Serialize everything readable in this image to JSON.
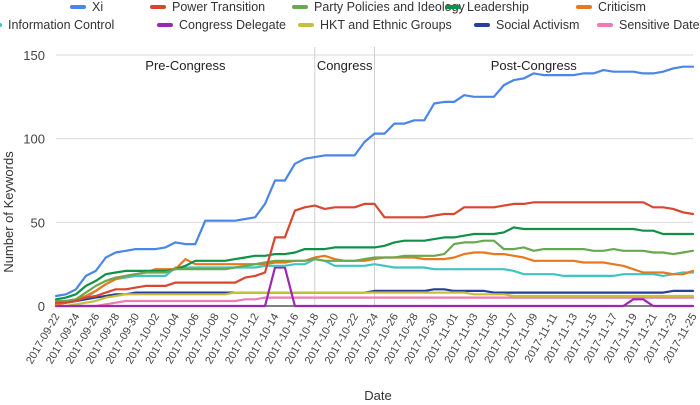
{
  "chart_data": {
    "type": "line",
    "title": "",
    "xlabel": "Date",
    "ylabel": "Number of Keywords",
    "ylim": [
      0,
      150
    ],
    "yticks": [
      0,
      50,
      100,
      150
    ],
    "grid": true,
    "legend_position": "top",
    "phases": [
      {
        "label": "Pre-Congress",
        "start": "2017-09-22",
        "end": "2017-10-18"
      },
      {
        "label": "Congress",
        "start": "2017-10-18",
        "end": "2017-10-24"
      },
      {
        "label": "Post-Congress",
        "start": "2017-10-24",
        "end": "2017-11-25"
      }
    ],
    "x_labels": [
      "2017-09-22",
      "2017-09-24",
      "2017-09-26",
      "2017-09-28",
      "2017-09-30",
      "2017-10-02",
      "2017-10-04",
      "2017-10-06",
      "2017-10-08",
      "2017-10-10",
      "2017-10-12",
      "2017-10-14",
      "2017-10-16",
      "2017-10-18",
      "2017-10-20",
      "2017-10-22",
      "2017-10-24",
      "2017-10-26",
      "2017-10-28",
      "2017-10-30",
      "2017-11-01",
      "2017-11-03",
      "2017-11-05",
      "2017-11-07",
      "2017-11-09",
      "2017-11-11",
      "2017-11-13",
      "2017-11-15",
      "2017-11-17",
      "2017-11-19",
      "2017-11-21",
      "2017-11-23",
      "2017-11-25"
    ],
    "x": [
      "2017-09-22",
      "2017-09-23",
      "2017-09-24",
      "2017-09-25",
      "2017-09-26",
      "2017-09-27",
      "2017-09-28",
      "2017-09-29",
      "2017-09-30",
      "2017-10-01",
      "2017-10-02",
      "2017-10-03",
      "2017-10-04",
      "2017-10-05",
      "2017-10-06",
      "2017-10-07",
      "2017-10-08",
      "2017-10-09",
      "2017-10-10",
      "2017-10-11",
      "2017-10-12",
      "2017-10-13",
      "2017-10-14",
      "2017-10-15",
      "2017-10-16",
      "2017-10-17",
      "2017-10-18",
      "2017-10-19",
      "2017-10-20",
      "2017-10-21",
      "2017-10-22",
      "2017-10-23",
      "2017-10-24",
      "2017-10-25",
      "2017-10-26",
      "2017-10-27",
      "2017-10-28",
      "2017-10-29",
      "2017-10-30",
      "2017-10-31",
      "2017-11-01",
      "2017-11-02",
      "2017-11-03",
      "2017-11-04",
      "2017-11-05",
      "2017-11-06",
      "2017-11-07",
      "2017-11-08",
      "2017-11-09",
      "2017-11-10",
      "2017-11-11",
      "2017-11-12",
      "2017-11-13",
      "2017-11-14",
      "2017-11-15",
      "2017-11-16",
      "2017-11-17",
      "2017-11-18",
      "2017-11-19",
      "2017-11-20",
      "2017-11-21",
      "2017-11-22",
      "2017-11-23",
      "2017-11-24",
      "2017-11-25"
    ],
    "series": [
      {
        "name": "Xi",
        "color": "#4a86e8",
        "values": [
          6,
          7,
          10,
          18,
          21,
          29,
          32,
          33,
          34,
          34,
          34,
          35,
          38,
          37,
          37,
          51,
          51,
          51,
          51,
          52,
          53,
          61,
          75,
          75,
          85,
          88,
          89,
          90,
          90,
          90,
          90,
          98,
          103,
          103,
          109,
          109,
          111,
          111,
          121,
          122,
          122,
          126,
          125,
          125,
          125,
          132,
          135,
          136,
          139,
          138,
          138,
          138,
          138,
          139,
          139,
          141,
          140,
          140,
          140,
          139,
          139,
          140,
          142,
          143,
          143
        ]
      },
      {
        "name": "Power Transition",
        "color": "#d9462f",
        "values": [
          2,
          2,
          3,
          5,
          6,
          8,
          10,
          10,
          11,
          12,
          12,
          12,
          14,
          14,
          14,
          14,
          14,
          14,
          14,
          17,
          18,
          20,
          41,
          41,
          57,
          59,
          60,
          58,
          59,
          59,
          59,
          61,
          61,
          53,
          53,
          53,
          53,
          53,
          54,
          55,
          55,
          59,
          59,
          59,
          59,
          60,
          61,
          61,
          62,
          62,
          62,
          62,
          62,
          62,
          62,
          62,
          62,
          62,
          62,
          62,
          59,
          59,
          58,
          56,
          55
        ]
      },
      {
        "name": "Party Policies and Ideology",
        "color": "#6aa84f",
        "values": [
          3,
          3,
          4,
          8,
          12,
          15,
          17,
          18,
          19,
          20,
          20,
          20,
          22,
          22,
          22,
          22,
          22,
          22,
          23,
          24,
          25,
          26,
          27,
          27,
          27,
          27,
          28,
          27,
          27,
          27,
          27,
          28,
          29,
          29,
          29,
          30,
          30,
          30,
          30,
          31,
          37,
          38,
          38,
          39,
          39,
          34,
          34,
          35,
          33,
          34,
          34,
          34,
          34,
          34,
          33,
          33,
          34,
          33,
          33,
          33,
          32,
          32,
          31,
          32,
          33
        ]
      },
      {
        "name": "Leadership",
        "color": "#109148",
        "values": [
          4,
          5,
          7,
          12,
          15,
          19,
          20,
          21,
          21,
          21,
          21,
          21,
          22,
          24,
          27,
          27,
          27,
          27,
          28,
          29,
          30,
          30,
          31,
          31,
          32,
          34,
          34,
          34,
          35,
          35,
          35,
          35,
          35,
          36,
          38,
          39,
          39,
          39,
          40,
          41,
          41,
          42,
          43,
          43,
          43,
          44,
          47,
          46,
          46,
          46,
          46,
          46,
          46,
          46,
          46,
          46,
          46,
          46,
          46,
          45,
          45,
          43,
          43,
          43,
          43
        ]
      },
      {
        "name": "Criticism",
        "color": "#e8781f",
        "values": [
          1,
          2,
          4,
          6,
          9,
          13,
          16,
          18,
          19,
          20,
          22,
          22,
          22,
          28,
          25,
          25,
          25,
          25,
          25,
          25,
          25,
          25,
          26,
          26,
          27,
          27,
          29,
          30,
          28,
          27,
          27,
          27,
          28,
          29,
          29,
          29,
          29,
          28,
          28,
          28,
          29,
          31,
          32,
          32,
          31,
          31,
          30,
          29,
          27,
          27,
          27,
          27,
          27,
          26,
          26,
          26,
          25,
          24,
          22,
          20,
          20,
          20,
          19,
          19,
          21
        ]
      },
      {
        "name": "Information Control",
        "color": "#40c4c2",
        "values": [
          2,
          3,
          4,
          5,
          9,
          13,
          16,
          17,
          18,
          18,
          18,
          18,
          23,
          23,
          23,
          23,
          23,
          23,
          23,
          23,
          23,
          24,
          24,
          24,
          25,
          25,
          28,
          27,
          24,
          24,
          24,
          24,
          25,
          24,
          23,
          23,
          23,
          23,
          22,
          22,
          22,
          22,
          22,
          22,
          22,
          22,
          21,
          19,
          19,
          19,
          19,
          18,
          18,
          18,
          18,
          18,
          18,
          19,
          19,
          19,
          19,
          18,
          19,
          20,
          20
        ]
      },
      {
        "name": "Congress Delegate",
        "color": "#9c27b0",
        "values": [
          0,
          0,
          0,
          0,
          0,
          0,
          0,
          0,
          0,
          0,
          0,
          0,
          0,
          0,
          0,
          0,
          0,
          0,
          0,
          0,
          0,
          0,
          23,
          23,
          0,
          0,
          0,
          0,
          0,
          0,
          0,
          0,
          0,
          0,
          0,
          0,
          0,
          0,
          0,
          0,
          0,
          0,
          0,
          0,
          0,
          0,
          0,
          0,
          0,
          0,
          0,
          0,
          0,
          0,
          0,
          0,
          0,
          0,
          4,
          4,
          0,
          0,
          0,
          0,
          0
        ]
      },
      {
        "name": "HKT and Ethnic Groups",
        "color": "#c5c13b",
        "values": [
          0,
          0,
          1,
          2,
          3,
          5,
          6,
          7,
          7,
          7,
          7,
          7,
          7,
          7,
          7,
          7,
          7,
          7,
          8,
          8,
          8,
          8,
          8,
          8,
          8,
          8,
          8,
          8,
          8,
          8,
          8,
          8,
          8,
          8,
          8,
          8,
          8,
          8,
          8,
          8,
          8,
          8,
          7,
          7,
          7,
          7,
          6,
          6,
          6,
          6,
          6,
          6,
          6,
          6,
          6,
          6,
          6,
          6,
          6,
          6,
          6,
          6,
          6,
          6,
          6
        ]
      },
      {
        "name": "Social Activism",
        "color": "#263f9a",
        "values": [
          1,
          2,
          3,
          4,
          5,
          6,
          7,
          7,
          8,
          8,
          8,
          8,
          8,
          8,
          8,
          8,
          8,
          8,
          8,
          8,
          8,
          8,
          8,
          8,
          8,
          8,
          8,
          8,
          8,
          8,
          8,
          8,
          9,
          9,
          9,
          9,
          9,
          9,
          10,
          10,
          9,
          9,
          9,
          9,
          8,
          8,
          8,
          8,
          8,
          8,
          8,
          8,
          8,
          8,
          8,
          8,
          8,
          8,
          8,
          8,
          8,
          8,
          9,
          9,
          9
        ]
      },
      {
        "name": "Sensitive Date",
        "color": "#ee7bb3",
        "values": [
          0,
          0,
          0,
          0,
          0,
          1,
          2,
          3,
          3,
          3,
          3,
          3,
          3,
          3,
          3,
          3,
          3,
          3,
          3,
          4,
          4,
          5,
          5,
          5,
          5,
          5,
          5,
          5,
          5,
          5,
          5,
          5,
          5,
          5,
          5,
          5,
          5,
          5,
          5,
          5,
          5,
          5,
          5,
          5,
          5,
          5,
          5,
          5,
          5,
          5,
          5,
          5,
          5,
          5,
          5,
          5,
          5,
          5,
          5,
          5,
          5,
          5,
          5,
          5,
          5
        ]
      }
    ]
  }
}
